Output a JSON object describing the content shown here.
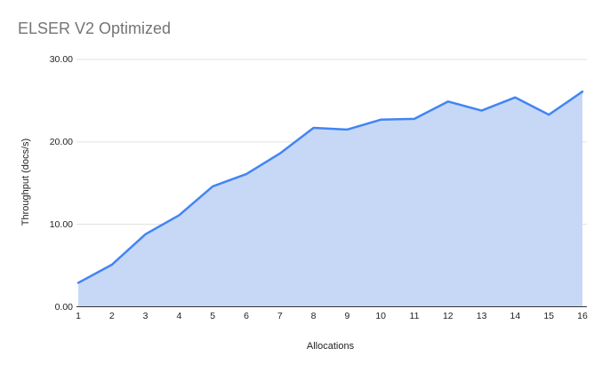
{
  "chart": {
    "title": "ELSER V2 Optimized",
    "x_axis": {
      "title": "Allocations"
    },
    "y_axis": {
      "title": "Throughput (docs/s)"
    }
  },
  "chart_data": {
    "type": "area",
    "title": "ELSER V2 Optimized",
    "xlabel": "Allocations",
    "ylabel": "Throughput (docs/s)",
    "x": [
      1,
      2,
      3,
      4,
      5,
      6,
      7,
      8,
      9,
      10,
      11,
      12,
      13,
      14,
      15,
      16
    ],
    "values": [
      2.9,
      5.1,
      8.8,
      11.1,
      14.6,
      16.1,
      18.6,
      21.7,
      21.5,
      22.7,
      22.8,
      24.9,
      23.8,
      25.4,
      23.3,
      26.1
    ],
    "series_name": "Throughput (docs/s)",
    "xtick_labels": [
      "1",
      "2",
      "3",
      "4",
      "5",
      "6",
      "7",
      "8",
      "9",
      "10",
      "11",
      "12",
      "13",
      "14",
      "15",
      "16"
    ],
    "yticks": [
      0,
      10,
      20,
      30
    ],
    "ytick_labels": [
      "0.00",
      "10.00",
      "20.00",
      "30.00"
    ],
    "xlim": [
      1,
      16
    ],
    "ylim": [
      0,
      30
    ],
    "grid": true,
    "legend_position": "none",
    "line_color": "#4285f4",
    "fill_color": "#c7d8f7",
    "gridline_color": "#e0e0e0",
    "axis_line_color": "#333333",
    "title_color": "#757575",
    "tick_label_color": "#222222"
  }
}
